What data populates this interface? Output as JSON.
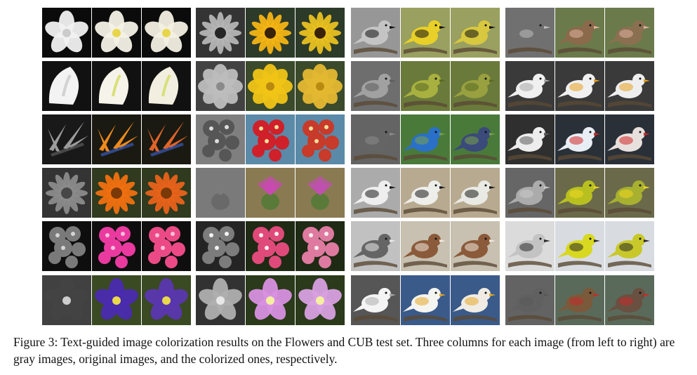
{
  "figure": {
    "caption": "Figure 3: Text-guided image colorization results on the Flowers and CUB test set. Three columns for each image (from left to right) are gray images, original images, and the colorized ones, respectively."
  },
  "panels": [
    {
      "name": "flowers-left",
      "rows": [
        {
          "subject": "white orchid",
          "kind": "flower",
          "bg": "#0b0b0b",
          "orig": "#f4f1e6",
          "colorized": "#f3efe2",
          "accent": "#e8d64a"
        },
        {
          "subject": "white calla lily",
          "kind": "lily",
          "bg": "#111111",
          "orig": "#f6f4ea",
          "colorized": "#f2efe0",
          "accent": "#d8e07a"
        },
        {
          "subject": "bird of paradise",
          "kind": "spiky",
          "bg": "#1a1a12",
          "orig": "#f08a1c",
          "colorized": "#e0642a",
          "accent": "#3a5ab8"
        },
        {
          "subject": "orange gerbera",
          "kind": "daisy",
          "bg": "#2f3a1e",
          "orig": "#f07010",
          "colorized": "#e8621a",
          "accent": "#7a3a08"
        },
        {
          "subject": "pink snapdragon",
          "kind": "cluster",
          "bg": "#0e0e0e",
          "orig": "#ea3aa0",
          "colorized": "#ec4a86",
          "accent": "#f7c0dc"
        },
        {
          "subject": "purple bellflower",
          "kind": "bell",
          "bg": "#3a4a22",
          "orig": "#4a2ab0",
          "colorized": "#5a36b0",
          "accent": "#e8d84a"
        }
      ]
    },
    {
      "name": "flowers-right",
      "rows": [
        {
          "subject": "yellow daisies",
          "kind": "daisy",
          "bg": "#2c3a2a",
          "orig": "#f4b414",
          "colorized": "#e8c020",
          "accent": "#3a2208"
        },
        {
          "subject": "yellow rose",
          "kind": "rose",
          "bg": "#3a4a2a",
          "orig": "#f0c416",
          "colorized": "#e4b832",
          "accent": "#b88a10"
        },
        {
          "subject": "red snapdragons",
          "kind": "cluster",
          "bg": "#5a8aa8",
          "orig": "#d0202a",
          "colorized": "#c83a2a",
          "accent": "#f0e09a"
        },
        {
          "subject": "purple thistle",
          "kind": "thistle",
          "bg": "#8a7a52",
          "orig": "#c84ab0",
          "colorized": "#c050b0",
          "accent": "#5a7a3a"
        },
        {
          "subject": "pink alstroemeria",
          "kind": "cluster",
          "bg": "#1e2a14",
          "orig": "#e04a7a",
          "colorized": "#de7aa0",
          "accent": "#f6f0f0"
        },
        {
          "subject": "pink primrose",
          "kind": "flower",
          "bg": "#2a3a1a",
          "orig": "#d890e0",
          "colorized": "#d8a0e0",
          "accent": "#f4f0a0"
        }
      ]
    },
    {
      "name": "birds-left",
      "rows": [
        {
          "subject": "black-throated bird",
          "kind": "bird",
          "bg": "#9aa060",
          "orig": "#e8d028",
          "colorized": "#d8c840",
          "accent": "#111111"
        },
        {
          "subject": "green warbler",
          "kind": "bird",
          "bg": "#6a7a3a",
          "orig": "#a8b040",
          "colorized": "#98a040",
          "accent": "#5a6a22"
        },
        {
          "subject": "indigo bunting",
          "kind": "bird",
          "bg": "#4a7a3a",
          "orig": "#2a70c8",
          "colorized": "#3a4a7a",
          "accent": "#7aa048"
        },
        {
          "subject": "white gull chick",
          "kind": "bird",
          "bg": "#b8aa90",
          "orig": "#eeeeea",
          "colorized": "#eaeae4",
          "accent": "#1a1a1a"
        },
        {
          "subject": "tree sparrow",
          "kind": "bird",
          "bg": "#c8c0b0",
          "orig": "#8a5a3a",
          "colorized": "#8a5a3a",
          "accent": "#f0e8dc"
        },
        {
          "subject": "white pelican",
          "kind": "bird",
          "bg": "#3a5a8a",
          "orig": "#f4f4f0",
          "colorized": "#f0ece4",
          "accent": "#e8a828"
        }
      ]
    },
    {
      "name": "birds-right",
      "rows": [
        {
          "subject": "house sparrow",
          "kind": "bird",
          "bg": "#6a7a4a",
          "orig": "#8a6a4a",
          "colorized": "#8a7050",
          "accent": "#e0b0a0"
        },
        {
          "subject": "herring gull",
          "kind": "bird",
          "bg": "#3a3a3a",
          "orig": "#f0f0f0",
          "colorized": "#eeeeee",
          "accent": "#e8a020"
        },
        {
          "subject": "flying gull",
          "kind": "bird",
          "bg": "#2a3038",
          "orig": "#e8eef4",
          "colorized": "#e8e0dc",
          "accent": "#d02828"
        },
        {
          "subject": "yellow-throated bird",
          "kind": "bird",
          "bg": "#6a6a4a",
          "orig": "#b8c020",
          "colorized": "#a8b030",
          "accent": "#f0d820"
        },
        {
          "subject": "yellow tanager",
          "kind": "bird",
          "bg": "#d8dce0",
          "orig": "#d8d820",
          "colorized": "#c8c82a",
          "accent": "#2a2a2a"
        },
        {
          "subject": "red-headed woodpecker",
          "kind": "bird",
          "bg": "#5a6a5a",
          "orig": "#7a5a3a",
          "colorized": "#6a5040",
          "accent": "#c82a2a"
        }
      ]
    }
  ]
}
